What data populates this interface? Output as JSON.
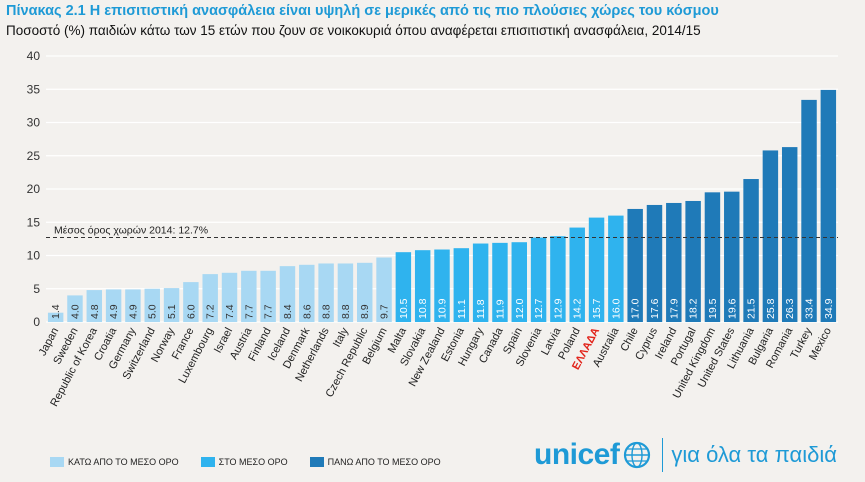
{
  "header": {
    "title": "Πίνακας 2.1   Η επισιτιστική ανασφάλεια είναι υψηλή σε μερικές από τις πιο πλούσιες χώρες του κόσμου",
    "subtitle": "Ποσοστό (%) παιδιών κάτω των 15 ετών που ζουν σε νοικοκυριά όπου αναφέρεται επισιτιστική ανασφάλεια, 2014/15"
  },
  "chart_data": {
    "type": "bar",
    "categories": [
      "Japan",
      "Sweden",
      "Republic of Korea",
      "Croatia",
      "Germany",
      "Switzerland",
      "Norway",
      "France",
      "Luxembourg",
      "Israel",
      "Austria",
      "Finland",
      "Iceland",
      "Denmark",
      "Netherlands",
      "Italy",
      "Czech Republic",
      "Belgium",
      "Malta",
      "Slovakia",
      "New Zealand",
      "Estonia",
      "Hungary",
      "Canada",
      "Spain",
      "Slovenia",
      "Latvia",
      "Poland",
      "ΕΛΛΑΔΑ",
      "Australia",
      "Chile",
      "Cyprus",
      "Ireland",
      "Portugal",
      "United Kingdom",
      "United States",
      "Lithuania",
      "Bulgaria",
      "Romania",
      "Turkey",
      "Mexico"
    ],
    "values": [
      1.4,
      4.0,
      4.8,
      4.9,
      4.9,
      5.0,
      5.1,
      6.0,
      7.2,
      7.4,
      7.7,
      7.7,
      8.4,
      8.6,
      8.8,
      8.8,
      8.9,
      9.7,
      10.5,
      10.8,
      10.9,
      11.1,
      11.8,
      11.9,
      12.0,
      12.7,
      12.9,
      14.2,
      15.7,
      16.0,
      17.0,
      17.6,
      17.9,
      18.2,
      19.5,
      19.6,
      21.5,
      25.8,
      26.3,
      33.4,
      34.9
    ],
    "groups": [
      "below",
      "below",
      "below",
      "below",
      "below",
      "below",
      "below",
      "below",
      "below",
      "below",
      "below",
      "below",
      "below",
      "below",
      "below",
      "below",
      "below",
      "below",
      "at",
      "at",
      "at",
      "at",
      "at",
      "at",
      "at",
      "at",
      "at",
      "at",
      "at",
      "at",
      "above",
      "above",
      "above",
      "above",
      "above",
      "above",
      "above",
      "above",
      "above",
      "above",
      "above"
    ],
    "highlight_category": "ΕΛΛΑΔΑ",
    "highlight_color": "#e2231a",
    "ylim": [
      0,
      40
    ],
    "yticks": [
      0,
      5,
      10,
      15,
      20,
      25,
      30,
      35,
      40
    ],
    "grid": true,
    "reference_line": {
      "value": 12.7,
      "label": "Μέσος όρος χωρών 2014: 12.7%"
    },
    "colors": {
      "below": "#a8d8f3",
      "at": "#2fb3ee",
      "above": "#1f7ab8"
    },
    "legend": [
      {
        "key": "below",
        "label": "ΚΑΤΩ ΑΠΟ ΤΟ ΜΕΣΟ ΟΡΟ"
      },
      {
        "key": "at",
        "label": "ΣΤΟ ΜΕΣΟ ΟΡΟ"
      },
      {
        "key": "above",
        "label": "ΠΑΝΩ ΑΠΟ ΤΟ ΜΕΣΟ ΟΡΟ"
      }
    ],
    "legend_position": "bottom-left"
  },
  "branding": {
    "logo_word": "unicef",
    "logo_icon": "unicef-globe-icon",
    "tagline": "για όλα τα παιδιά",
    "brand_color": "#1e9ad6"
  }
}
